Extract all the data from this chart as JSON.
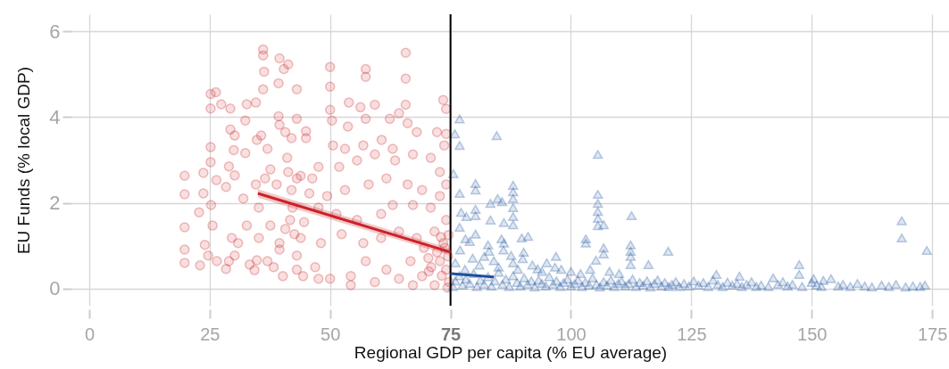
{
  "chart_data": {
    "type": "scatter",
    "xlabel": "Regional GDP per capita (% EU average)",
    "ylabel": "EU Funds (% local GDP)",
    "xlim": [
      -3.7,
      178.5
    ],
    "ylim": [
      -0.4,
      6.4
    ],
    "xticks": [
      0,
      25,
      50,
      75,
      100,
      125,
      150,
      175
    ],
    "yticks": [
      0,
      2,
      4,
      6
    ],
    "grid": true,
    "ref_lines": [
      {
        "axis": "x",
        "value": 75,
        "color": "#000000"
      }
    ],
    "series": [
      {
        "marker": "circle",
        "color": "#cf2a2f",
        "x": [
          19.8,
          19.8,
          19.8,
          19.8,
          19.8,
          25.2,
          26.3,
          25.2,
          27.4,
          29.3,
          25.2,
          25.2,
          23.7,
          26.4,
          28.4,
          29,
          30.2,
          29.3,
          30.2,
          30,
          22.8,
          23.7,
          25.3,
          25.6,
          24,
          23,
          24.7,
          26.5,
          29,
          30.2,
          29.6,
          28.4,
          32.7,
          32.4,
          32.4,
          34.6,
          36.1,
          36.1,
          36.3,
          36.1,
          34.8,
          35.7,
          37,
          39.3,
          39.5,
          40.4,
          41.3,
          43.1,
          43.1,
          39.3,
          40.7,
          42,
          32.7,
          32,
          34.6,
          35.2,
          34.8,
          34.3,
          37,
          38.3,
          40.2,
          39.5,
          37.6,
          38.9,
          41.1,
          41.7,
          40.7,
          42.6,
          42.2,
          43.1,
          44.4,
          43.1,
          50,
          50,
          57.4,
          57.4,
          65.7,
          65.7,
          53.9,
          56.3,
          59.3,
          50,
          50.4,
          53.7,
          57.4,
          62.4,
          64.3,
          65.7,
          66.1,
          73.5,
          74.1,
          72.2,
          74.1,
          68,
          60.7,
          56.9,
          53.1,
          50.6,
          45,
          45,
          39.5,
          63,
          67.2,
          73.7,
          72.8,
          70.9,
          63.5,
          59.3,
          55.6,
          51.9,
          47.6,
          46.3,
          43.9,
          41.3,
          36.5,
          42,
          45.7,
          49.4,
          53.1,
          58,
          61.7,
          66.1,
          69.1,
          72.8,
          74.1,
          70.9,
          67.2,
          63,
          60.6,
          55.6,
          51.3,
          47.6,
          37.6,
          30.9,
          35.2,
          39.5,
          43.9,
          48.1,
          52.4,
          56.9,
          60.6,
          64.3,
          68,
          71.7,
          74.1,
          73.5,
          70.4,
          72.8,
          74.1,
          66.7,
          61.7,
          57.4,
          54.3,
          50,
          46.9,
          43.1,
          33.3,
          64.3,
          69.1,
          59.3,
          74.4,
          71.7,
          67.2,
          54.3,
          47.6,
          72.2,
          73.8,
          71,
          74.5,
          73,
          74.6,
          69.5,
          70.5,
          73.2,
          74.7,
          44.6
        ],
        "values": [
          2.63,
          2.2,
          1.43,
          0.91,
          0.6,
          4.54,
          4.58,
          4.2,
          4.3,
          4.2,
          3.3,
          2.95,
          2.7,
          2.53,
          2.37,
          2.85,
          2.64,
          3.71,
          3.57,
          3.23,
          1.78,
          2.22,
          1.95,
          1.47,
          1.02,
          0.54,
          0.77,
          0.64,
          0.64,
          0.77,
          1.18,
          0.46,
          4.3,
          3.92,
          3.16,
          4.34,
          5.58,
          5.44,
          5.06,
          4.65,
          3.47,
          3.57,
          3.26,
          4.79,
          5.37,
          5.12,
          5.23,
          4.65,
          3.96,
          4.02,
          3.65,
          3.51,
          1.47,
          2.1,
          2.43,
          1.89,
          0.66,
          0.43,
          0.64,
          0.5,
          0.29,
          0.91,
          2.78,
          2.43,
          3.05,
          1.6,
          1.39,
          1.27,
          1.89,
          0.77,
          0.29,
          2.57,
          5.17,
          4.71,
          5.12,
          4.94,
          5.5,
          4.9,
          4.34,
          4.23,
          4.29,
          4.17,
          3.92,
          3.78,
          3.96,
          3.96,
          4.09,
          4.29,
          3.86,
          4.4,
          4.19,
          3.65,
          3.61,
          3.65,
          3.47,
          3.34,
          3.26,
          3.34,
          3.67,
          3.51,
          3.82,
          3.26,
          3.13,
          3.34,
          2.72,
          3.05,
          2.99,
          3.13,
          2.99,
          2.84,
          2.84,
          2.57,
          2.63,
          2.72,
          2.57,
          2.3,
          2.22,
          2.16,
          2.3,
          2.43,
          2.57,
          2.43,
          2.3,
          2.16,
          2.43,
          1.89,
          1.95,
          1.95,
          1.74,
          1.6,
          1.74,
          1.89,
          1.47,
          1.06,
          1.18,
          1.06,
          1.18,
          1.06,
          1.27,
          1.06,
          1.18,
          1.33,
          1.18,
          1.33,
          1.6,
          1.06,
          0.71,
          0.64,
          0.44,
          0.64,
          0.44,
          0.64,
          0.29,
          0.23,
          0.5,
          0.44,
          0.56,
          0.23,
          0.29,
          0.15,
          0.02,
          0.08,
          0.08,
          0.08,
          0.23,
          0.85,
          0.95,
          0.5,
          0.75,
          1.2,
          1.25,
          0.95,
          0.4,
          0.3,
          0.15,
          1.55
        ]
      },
      {
        "marker": "triangle",
        "color": "#2155a3",
        "x": [
          76.9,
          75.9,
          76.9,
          84.6,
          75.6,
          76.9,
          80.2,
          80.2,
          88,
          88,
          88,
          88,
          88,
          88,
          84.8,
          83.3,
          85.7,
          80.2,
          80.2,
          77.2,
          78.3,
          83.3,
          86.1,
          76.9,
          80.2,
          85.6,
          91.1,
          89.8,
          82.8,
          78.1,
          105.6,
          105.6,
          105.6,
          105.6,
          105.6,
          105.6,
          106.8,
          112.6,
          103.1,
          103.1,
          106.8,
          106.8,
          105.2,
          112.4,
          112.4,
          112.4,
          112.4,
          120.2,
          116.1,
          96.9,
          96.7,
          93.1,
          83,
          79.6,
          87.6,
          90.2,
          86.1,
          168.7,
          168.7,
          173.9,
          147.4,
          147.4,
          135,
          130.2,
          142,
          150.4,
          152.4,
          154,
          76,
          77,
          78,
          79,
          81,
          82,
          84,
          85,
          86,
          88,
          89,
          90,
          92,
          94,
          95,
          98,
          100,
          102,
          104,
          108,
          110,
          75.5,
          76,
          76.8,
          77.5,
          78.2,
          79,
          79.8,
          80.5,
          81.2,
          82,
          82.8,
          83.5,
          84.2,
          85,
          85.8,
          86.5,
          87.2,
          88,
          88.8,
          89.5,
          90.3,
          91,
          91.8,
          92.5,
          93.3,
          94,
          94.8,
          95.5,
          96.3,
          97,
          97.8,
          98.5,
          99.3,
          100,
          100.8,
          101.5,
          102.3,
          103,
          103.8,
          104.5,
          105.3,
          106,
          106.8,
          107.5,
          108.3,
          109,
          109.8,
          110.5,
          111.3,
          112,
          112.8,
          113.5,
          114.3,
          115,
          115.8,
          116.5,
          117.3,
          118,
          118.8,
          119.5,
          120.3,
          121,
          121.8,
          122.5,
          123.5,
          124.5,
          125.5,
          126.5,
          127.5,
          128.5,
          129.5,
          130.5,
          131.5,
          132.5,
          133.5,
          134.5,
          135.5,
          136.5,
          137.5,
          138.5,
          139.5,
          141,
          143,
          144,
          145,
          146,
          148,
          150,
          151,
          152,
          155.5,
          156.5,
          158,
          159.5,
          161,
          162.5,
          164.5,
          166,
          167.5,
          169.5,
          171,
          172.5,
          173.5
        ],
        "values": [
          3.96,
          3.61,
          3.34,
          3.57,
          2.68,
          2.22,
          2.45,
          2.3,
          2.41,
          2.26,
          2.1,
          1.89,
          1.68,
          1.49,
          2.1,
          1.99,
          2.03,
          1.85,
          1.7,
          1.78,
          1.68,
          1.6,
          1.54,
          1.43,
          1.27,
          1.16,
          1.22,
          1.18,
          1.02,
          1.16,
          3.13,
          2.2,
          1.99,
          1.8,
          1.64,
          1.47,
          1.49,
          1.7,
          1.16,
          1.06,
          0.95,
          0.81,
          0.66,
          1.02,
          0.87,
          0.75,
          0.56,
          0.87,
          0.56,
          0.75,
          0.5,
          0.46,
          0.87,
          0.71,
          0.77,
          0.85,
          1.06,
          1.58,
          1.18,
          0.89,
          0.56,
          0.33,
          0.29,
          0.33,
          0.25,
          0.23,
          0.19,
          0.23,
          0.6,
          0.9,
          0.45,
          1.1,
          0.55,
          0.75,
          0.65,
          0.5,
          0.9,
          0.6,
          0.45,
          0.7,
          0.55,
          0.4,
          0.6,
          0.45,
          0.4,
          0.35,
          0.45,
          0.4,
          0.35,
          0.05,
          0.18,
          0.3,
          0.08,
          0.22,
          0.12,
          0.35,
          0.05,
          0.2,
          0.1,
          0.28,
          0.06,
          0.18,
          0.38,
          0.1,
          0.22,
          0.05,
          0.3,
          0.14,
          0.06,
          0.25,
          0.1,
          0.18,
          0.04,
          0.2,
          0.12,
          0.06,
          0.28,
          0.1,
          0.18,
          0.05,
          0.14,
          0.22,
          0.06,
          0.12,
          0.2,
          0.05,
          0.15,
          0.08,
          0.25,
          0.1,
          0.04,
          0.16,
          0.08,
          0.2,
          0.05,
          0.12,
          0.18,
          0.06,
          0.12,
          0.22,
          0.05,
          0.14,
          0.08,
          0.18,
          0.04,
          0.12,
          0.2,
          0.06,
          0.14,
          0.05,
          0.1,
          0.16,
          0.05,
          0.12,
          0.06,
          0.18,
          0.08,
          0.14,
          0.05,
          0.2,
          0.1,
          0.05,
          0.15,
          0.08,
          0.12,
          0.05,
          0.1,
          0.16,
          0.05,
          0.08,
          0.05,
          0.1,
          0.16,
          0.06,
          0.1,
          0.05,
          0.14,
          0.08,
          0.05,
          0.06,
          0.1,
          0.05,
          0.12,
          0.06,
          0.04,
          0.08,
          0.05,
          0.1,
          0.04,
          0.06,
          0.05,
          0.08
        ]
      },
      {
        "type": "line",
        "line_style": "solid",
        "color": "#cc2229",
        "x": [
          35,
          75
        ],
        "values": [
          2.22,
          0.85
        ],
        "lower": [
          2.12,
          0.77
        ],
        "upper": [
          2.32,
          0.93
        ]
      },
      {
        "type": "line",
        "line_style": "solid",
        "color": "#1f4e9c",
        "x": [
          75,
          84
        ],
        "values": [
          0.35,
          0.27
        ]
      }
    ]
  }
}
